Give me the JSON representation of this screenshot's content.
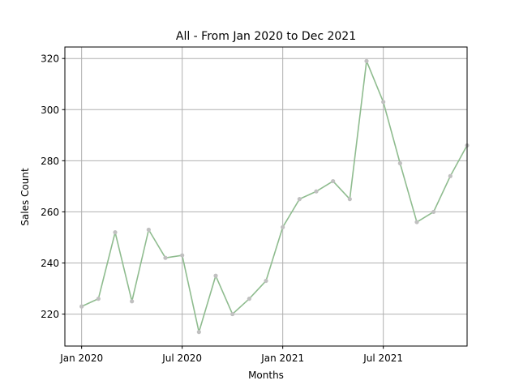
{
  "chart_data": {
    "type": "line",
    "title": "All - From Jan 2020 to Dec 2021",
    "xlabel": "Months",
    "ylabel": "Sales Count",
    "x_ticks": [
      "Jan 2020",
      "Jul 2020",
      "Jan 2021",
      "Jul 2021"
    ],
    "y_ticks": [
      220,
      240,
      260,
      280,
      300,
      320
    ],
    "ylim": [
      207.5,
      324.5
    ],
    "xlim": [
      "2019-12",
      "2021-12"
    ],
    "grid": true,
    "series": [
      {
        "color": "#8fbc8f",
        "marker_color": "#c0c0c0",
        "x": [
          "2020-01",
          "2020-02",
          "2020-03",
          "2020-04",
          "2020-05",
          "2020-06",
          "2020-07",
          "2020-08",
          "2020-09",
          "2020-10",
          "2020-11",
          "2020-12",
          "2021-01",
          "2021-02",
          "2021-03",
          "2021-04",
          "2021-05",
          "2021-06",
          "2021-07",
          "2021-08",
          "2021-09",
          "2021-10",
          "2021-11",
          "2021-12"
        ],
        "values": [
          223,
          226,
          252,
          225,
          253,
          242,
          243,
          213,
          235,
          220,
          226,
          233,
          254,
          265,
          268,
          272,
          265,
          319,
          303,
          279,
          256,
          260,
          274,
          286
        ]
      }
    ]
  }
}
